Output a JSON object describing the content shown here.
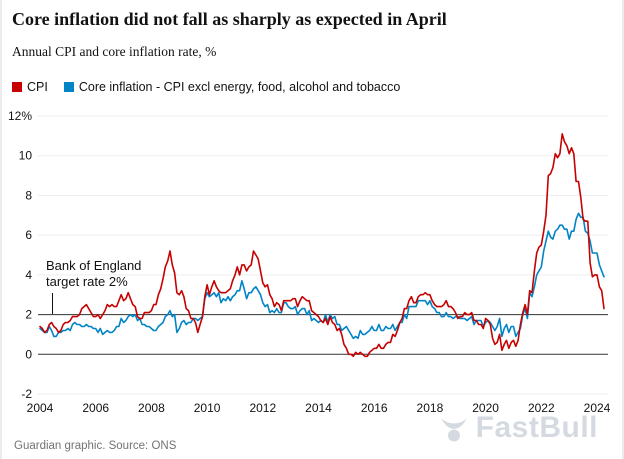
{
  "header": {
    "title": "Core inflation did not fall as sharply as expected in April",
    "subtitle": "Annual CPI and core inflation rate, %"
  },
  "legend": [
    {
      "label": "CPI",
      "color": "#c70000"
    },
    {
      "label": "Core inflation - CPI excl energy, food, alcohol and tobacco",
      "color": "#0084c6"
    }
  ],
  "annotation": {
    "line1": "Bank of England",
    "line2": "target rate 2%"
  },
  "footer": {
    "source": "Guardian graphic. Source: ONS"
  },
  "watermark": {
    "text": "FastBull"
  },
  "chart_data": {
    "type": "line",
    "title": "Core inflation did not fall as sharply as expected in April",
    "subtitle": "Annual CPI and core inflation rate, %",
    "annotation": "Bank of England target rate 2%",
    "x_start": "2004-01",
    "x_end": "2024-04",
    "x_frequency": "monthly",
    "x_tick_labels": [
      "2004",
      "2006",
      "2008",
      "2010",
      "2012",
      "2014",
      "2016",
      "2018",
      "2020",
      "2022",
      "2024"
    ],
    "y_ticks": [
      12,
      10,
      8,
      6,
      4,
      2,
      0,
      -2
    ],
    "y_tick_labels": [
      "12%",
      "10",
      "8",
      "6",
      "4",
      "2",
      "0",
      "-2"
    ],
    "ylim": [
      -2,
      12
    ],
    "emphasized_gridlines": [
      2,
      0
    ],
    "grid": true,
    "legend_position": "top",
    "series": [
      {
        "name": "CPI",
        "color": "#c70000",
        "values": [
          1.4,
          1.3,
          1.1,
          1.2,
          1.5,
          1.6,
          1.4,
          1.3,
          1.1,
          1.2,
          1.5,
          1.6,
          1.6,
          1.7,
          1.9,
          1.9,
          1.9,
          2.0,
          2.3,
          2.4,
          2.5,
          2.3,
          2.1,
          1.9,
          1.9,
          2.0,
          1.8,
          2.0,
          2.2,
          2.5,
          2.4,
          2.5,
          2.4,
          2.4,
          2.7,
          3.0,
          2.7,
          2.8,
          3.1,
          2.8,
          2.5,
          2.4,
          1.9,
          1.8,
          1.8,
          2.1,
          2.1,
          2.1,
          2.2,
          2.5,
          2.5,
          3.0,
          3.3,
          3.8,
          4.4,
          4.7,
          5.2,
          4.5,
          4.1,
          3.1,
          3.0,
          3.2,
          2.9,
          2.3,
          2.2,
          1.8,
          1.8,
          1.6,
          1.1,
          1.5,
          1.9,
          2.9,
          3.5,
          3.0,
          3.4,
          3.7,
          3.4,
          3.2,
          3.1,
          3.1,
          3.1,
          3.2,
          3.3,
          3.7,
          4.0,
          4.4,
          4.0,
          4.5,
          4.5,
          4.2,
          4.4,
          4.5,
          5.2,
          5.0,
          4.8,
          4.2,
          3.6,
          3.4,
          3.5,
          3.0,
          2.8,
          2.4,
          2.6,
          2.5,
          2.2,
          2.7,
          2.7,
          2.7,
          2.7,
          2.8,
          2.8,
          2.4,
          2.7,
          2.9,
          2.8,
          2.7,
          2.7,
          2.2,
          2.1,
          2.0,
          1.9,
          1.7,
          1.6,
          1.8,
          1.5,
          1.9,
          1.6,
          1.5,
          1.2,
          1.3,
          1.0,
          0.5,
          0.3,
          0.0,
          0.0,
          -0.1,
          0.1,
          0.0,
          0.1,
          0.0,
          -0.1,
          -0.1,
          0.1,
          0.2,
          0.3,
          0.3,
          0.5,
          0.3,
          0.3,
          0.5,
          0.6,
          0.6,
          1.0,
          0.9,
          1.2,
          1.6,
          1.8,
          2.3,
          2.3,
          2.7,
          2.9,
          2.6,
          2.6,
          2.9,
          3.0,
          3.0,
          3.1,
          3.0,
          3.0,
          2.7,
          2.5,
          2.4,
          2.4,
          2.4,
          2.5,
          2.7,
          2.4,
          2.4,
          2.3,
          2.1,
          1.8,
          1.9,
          1.9,
          2.1,
          2.0,
          2.0,
          2.1,
          1.7,
          1.7,
          1.5,
          1.5,
          1.3,
          1.8,
          1.7,
          1.5,
          0.8,
          0.5,
          0.6,
          1.0,
          0.2,
          0.5,
          0.7,
          0.3,
          0.6,
          0.7,
          0.4,
          0.7,
          1.5,
          2.1,
          2.5,
          2.0,
          3.2,
          3.1,
          4.2,
          5.1,
          5.4,
          5.5,
          6.2,
          7.0,
          9.0,
          9.1,
          9.4,
          10.1,
          9.9,
          10.1,
          11.1,
          10.7,
          10.5,
          10.1,
          10.4,
          10.1,
          8.7,
          8.7,
          7.9,
          6.8,
          6.7,
          6.7,
          4.6,
          3.9,
          4.0,
          4.0,
          3.4,
          3.2,
          2.3
        ]
      },
      {
        "name": "Core inflation - CPI excl energy, food, alcohol and tobacco",
        "color": "#0084c6",
        "values": [
          1.3,
          1.2,
          1.1,
          1.1,
          1.4,
          1.2,
          0.9,
          0.9,
          1.1,
          1.1,
          1.2,
          1.2,
          1.3,
          1.2,
          1.5,
          1.6,
          1.5,
          1.5,
          1.4,
          1.4,
          1.5,
          1.4,
          1.4,
          1.3,
          1.3,
          1.1,
          1.3,
          1.0,
          1.1,
          1.2,
          1.1,
          1.1,
          1.2,
          1.4,
          1.4,
          1.8,
          1.6,
          1.7,
          1.9,
          2.0,
          1.9,
          2.0,
          1.7,
          1.8,
          1.5,
          1.5,
          1.4,
          1.4,
          1.3,
          1.2,
          1.2,
          1.4,
          1.5,
          1.6,
          1.9,
          2.0,
          2.2,
          1.9,
          2.0,
          1.1,
          1.3,
          1.6,
          1.7,
          1.5,
          1.6,
          1.6,
          1.8,
          1.8,
          1.7,
          1.8,
          1.9,
          2.8,
          3.1,
          2.9,
          3.0,
          3.1,
          2.9,
          3.1,
          2.6,
          2.8,
          2.7,
          2.9,
          2.7,
          2.9,
          3.0,
          3.2,
          3.2,
          3.7,
          3.3,
          2.8,
          3.1,
          3.1,
          3.3,
          3.4,
          3.2,
          3.0,
          2.6,
          2.4,
          2.5,
          2.1,
          2.2,
          2.1,
          2.3,
          2.1,
          2.1,
          2.6,
          2.6,
          2.4,
          2.3,
          2.3,
          2.4,
          2.0,
          2.2,
          2.3,
          2.3,
          2.0,
          2.2,
          1.7,
          1.8,
          1.7,
          1.6,
          1.7,
          1.6,
          2.0,
          1.6,
          2.0,
          1.8,
          1.9,
          1.5,
          1.5,
          1.2,
          1.3,
          1.4,
          1.2,
          1.0,
          0.8,
          0.9,
          0.8,
          1.2,
          1.0,
          1.0,
          1.1,
          1.2,
          1.4,
          1.2,
          1.2,
          1.5,
          1.2,
          1.2,
          1.4,
          1.3,
          1.3,
          1.5,
          1.2,
          1.4,
          1.6,
          1.6,
          2.0,
          1.8,
          2.4,
          2.4,
          2.4,
          2.4,
          2.7,
          2.7,
          2.7,
          2.7,
          2.5,
          2.7,
          2.4,
          2.3,
          2.1,
          2.1,
          1.9,
          1.9,
          2.1,
          1.9,
          1.9,
          1.8,
          1.9,
          1.9,
          1.8,
          1.8,
          1.8,
          1.7,
          1.8,
          1.9,
          1.5,
          1.7,
          1.7,
          1.7,
          1.4,
          1.6,
          1.7,
          1.6,
          1.4,
          1.2,
          1.4,
          1.8,
          0.9,
          1.3,
          1.5,
          1.1,
          1.4,
          1.4,
          0.9,
          1.1,
          1.3,
          2.0,
          2.3,
          1.8,
          3.1,
          2.9,
          3.4,
          4.0,
          4.2,
          4.4,
          5.2,
          5.7,
          6.2,
          5.9,
          5.8,
          6.2,
          6.3,
          6.5,
          6.5,
          6.3,
          6.3,
          5.8,
          6.2,
          6.2,
          6.8,
          7.1,
          6.9,
          6.9,
          6.2,
          6.1,
          5.7,
          5.1,
          5.1,
          5.1,
          4.5,
          4.2,
          3.9
        ]
      }
    ]
  }
}
